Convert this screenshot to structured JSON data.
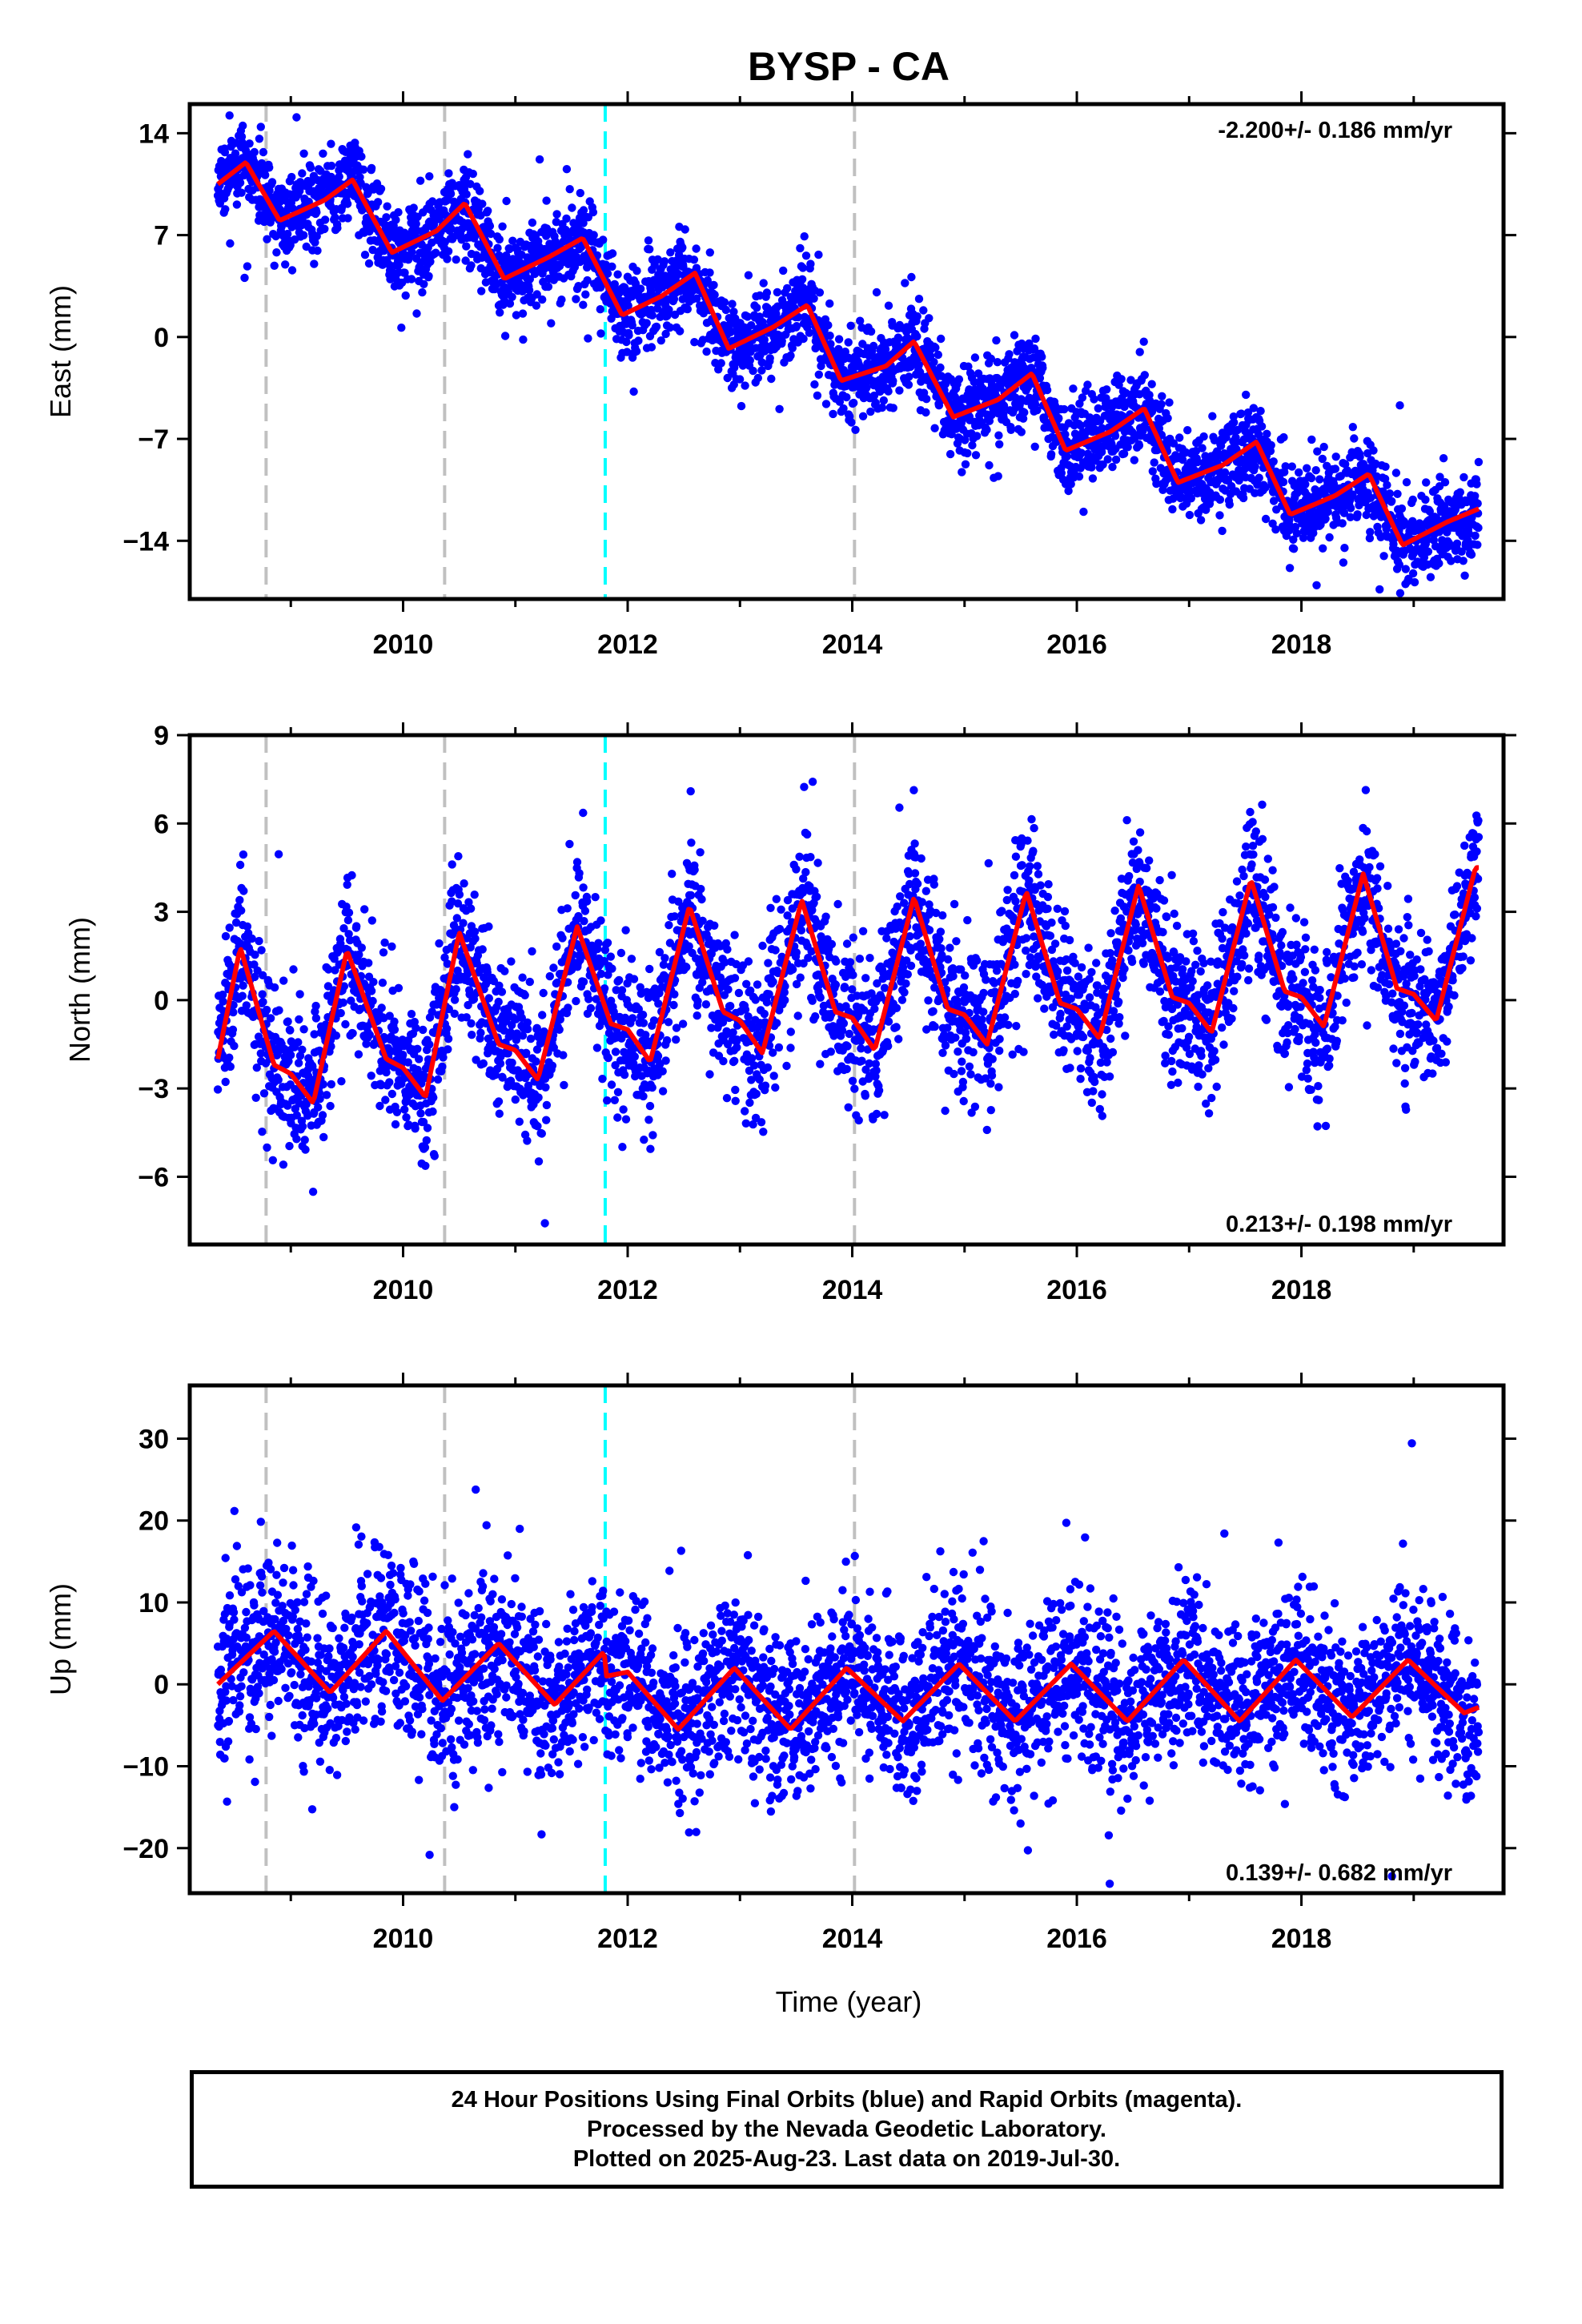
{
  "title": "BYSP - CA",
  "xlabel": "Time (year)",
  "caption": {
    "line1": "24 Hour Positions Using Final Orbits (blue) and Rapid Orbits (magenta).",
    "line2": "Processed by the Nevada Geodetic Laboratory.",
    "line3": "Plotted on 2025-Aug-23. Last data on 2019-Jul-30."
  },
  "colors": {
    "points": "#0000ff",
    "model": "#ff0000",
    "equipment_change": "#c0c0c0",
    "earthquake": "#00ffff"
  },
  "chart_data": [
    {
      "type": "scatter",
      "panel": "east",
      "ylabel": "East (mm)",
      "ylim": [
        -18,
        16
      ],
      "xlim": [
        2008.1,
        2019.8
      ],
      "yticks": [
        14,
        7,
        0,
        -7,
        -14
      ],
      "ytick_labels": [
        "14",
        "7",
        "0",
        "−7",
        "−14"
      ],
      "xticks": [
        2010,
        2012,
        2014,
        2016,
        2018
      ],
      "rate_text": "-2.200+/- 0.186 mm/yr",
      "rate_position": "top-right",
      "data_start": 2008.35,
      "data_end": 2019.58,
      "series": [
        {
          "role": "daily positions (blue dots)",
          "trend_mm_per_yr": -2.2,
          "intercept_at_2008_35_mm": 11.0,
          "annual_amplitude_mm": 1.7,
          "annual_peak_month_fraction": 0.55,
          "scatter_mm": 1.5
        },
        {
          "role": "model fit (red line)",
          "x": [
            2008.35,
            2008.6,
            2008.9,
            2009.3,
            2009.55,
            2009.9,
            2010.3,
            2010.55,
            2010.9,
            2011.3,
            2011.6,
            2011.95,
            2012.3,
            2012.6,
            2012.9,
            2013.3,
            2013.6,
            2013.9,
            2014.3,
            2014.55,
            2014.9,
            2015.3,
            2015.6,
            2015.9,
            2016.3,
            2016.6,
            2016.9,
            2017.3,
            2017.6,
            2017.9,
            2018.3,
            2018.6,
            2018.9,
            2019.3,
            2019.58
          ],
          "y": [
            10.5,
            12.0,
            8.0,
            9.4,
            10.8,
            5.8,
            7.3,
            9.2,
            4.0,
            5.5,
            6.8,
            1.5,
            2.8,
            4.4,
            -0.8,
            0.7,
            2.2,
            -3.0,
            -2.0,
            -0.3,
            -5.5,
            -4.3,
            -2.5,
            -7.8,
            -6.5,
            -4.9,
            -10.0,
            -8.8,
            -7.2,
            -12.2,
            -10.9,
            -9.4,
            -14.3,
            -12.7,
            -11.8
          ]
        }
      ],
      "vlines": [
        {
          "x": 2008.78,
          "kind": "equipment_change"
        },
        {
          "x": 2010.37,
          "kind": "equipment_change"
        },
        {
          "x": 2011.8,
          "kind": "earthquake"
        },
        {
          "x": 2014.02,
          "kind": "equipment_change"
        }
      ]
    },
    {
      "type": "scatter",
      "panel": "north",
      "ylabel": "North (mm)",
      "ylim": [
        -8.3,
        9
      ],
      "xlim": [
        2008.1,
        2019.8
      ],
      "yticks": [
        9,
        6,
        3,
        0,
        -3,
        -6
      ],
      "ytick_labels": [
        "9",
        "6",
        "3",
        "0",
        "−3",
        "−6"
      ],
      "xticks": [
        2010,
        2012,
        2014,
        2016,
        2018
      ],
      "rate_text": "0.213+/- 0.198 mm/yr",
      "rate_position": "bottom-right",
      "data_start": 2008.35,
      "data_end": 2019.58,
      "series": [
        {
          "role": "daily positions (blue dots)",
          "trend_mm_per_yr": 0.213,
          "annual_amplitude_mm": 2.8,
          "scatter_mm": 1.3
        },
        {
          "role": "model fit (red line)",
          "x": [
            2008.35,
            2008.55,
            2008.85,
            2009.0,
            2009.2,
            2009.5,
            2009.85,
            2010.0,
            2010.2,
            2010.5,
            2010.85,
            2011.0,
            2011.2,
            2011.55,
            2011.85,
            2012.0,
            2012.2,
            2012.55,
            2012.85,
            2013.0,
            2013.2,
            2013.55,
            2013.85,
            2014.0,
            2014.2,
            2014.55,
            2014.85,
            2015.0,
            2015.2,
            2015.55,
            2015.85,
            2016.0,
            2016.2,
            2016.55,
            2016.85,
            2017.0,
            2017.2,
            2017.55,
            2017.85,
            2018.0,
            2018.2,
            2018.55,
            2018.85,
            2019.0,
            2019.2,
            2019.55
          ],
          "y": [
            -2.0,
            1.8,
            -2.2,
            -2.5,
            -3.5,
            1.7,
            -2.0,
            -2.3,
            -3.3,
            2.3,
            -1.5,
            -1.7,
            -2.7,
            2.5,
            -0.8,
            -1.0,
            -2.1,
            3.2,
            -0.4,
            -0.7,
            -1.8,
            3.4,
            -0.4,
            -0.6,
            -1.7,
            3.5,
            -0.3,
            -0.5,
            -1.5,
            3.7,
            -0.1,
            -0.3,
            -1.3,
            3.9,
            0.1,
            -0.1,
            -1.1,
            4.1,
            0.3,
            0.1,
            -0.9,
            4.3,
            0.4,
            0.2,
            -0.7,
            4.5
          ]
        }
      ],
      "vlines": [
        {
          "x": 2008.78,
          "kind": "equipment_change"
        },
        {
          "x": 2010.37,
          "kind": "equipment_change"
        },
        {
          "x": 2011.8,
          "kind": "earthquake"
        },
        {
          "x": 2014.02,
          "kind": "equipment_change"
        }
      ]
    },
    {
      "type": "scatter",
      "panel": "up",
      "ylabel": "Up (mm)",
      "ylim": [
        -25.5,
        36.5
      ],
      "xlim": [
        2008.1,
        2019.8
      ],
      "yticks": [
        30,
        20,
        10,
        0,
        -10,
        -20
      ],
      "ytick_labels": [
        "30",
        "20",
        "10",
        "0",
        "−10",
        "−20"
      ],
      "xticks": [
        2010,
        2012,
        2014,
        2016,
        2018
      ],
      "rate_text": "0.139+/- 0.682 mm/yr",
      "rate_position": "bottom-right",
      "data_start": 2008.35,
      "data_end": 2019.58,
      "series": [
        {
          "role": "daily positions (blue dots)",
          "trend_mm_per_yr": 0.139,
          "annual_amplitude_mm": 4.5,
          "scatter_mm": 5.0
        },
        {
          "role": "model fit (red line)",
          "x": [
            2008.35,
            2008.85,
            2009.35,
            2009.85,
            2010.35,
            2010.85,
            2011.35,
            2011.79,
            2011.81,
            2012.0,
            2012.45,
            2012.95,
            2013.45,
            2013.95,
            2014.45,
            2014.95,
            2015.45,
            2015.95,
            2016.45,
            2016.95,
            2017.45,
            2017.95,
            2018.45,
            2018.95,
            2019.45,
            2019.58
          ],
          "y": [
            0.0,
            6.5,
            -1.0,
            6.5,
            -2.0,
            5.0,
            -2.5,
            4.0,
            1.0,
            1.5,
            -5.5,
            2.0,
            -5.5,
            2.0,
            -4.5,
            2.5,
            -4.5,
            2.5,
            -4.5,
            3.0,
            -4.5,
            3.0,
            -4.0,
            3.0,
            -3.5,
            -2.8
          ]
        }
      ],
      "vlines": [
        {
          "x": 2008.78,
          "kind": "equipment_change"
        },
        {
          "x": 2010.37,
          "kind": "equipment_change"
        },
        {
          "x": 2011.8,
          "kind": "earthquake"
        },
        {
          "x": 2014.02,
          "kind": "equipment_change"
        }
      ]
    }
  ]
}
